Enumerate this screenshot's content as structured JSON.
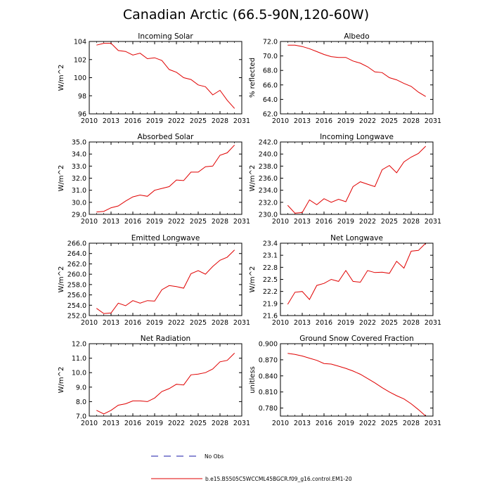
{
  "figure_title": "Canadian Arctic (66.5-90N,120-60W)",
  "legend": {
    "entries": [
      {
        "label": "No Obs",
        "style": "dashed",
        "color": "#1a1aa8"
      },
      {
        "label": "b.e15.B5505C5WCCML45BGCR.f09_g16.control.EM1-20",
        "style": "solid",
        "color": "#e00000"
      }
    ]
  },
  "chart_data": [
    {
      "type": "line",
      "title": "Incoming Solar",
      "ylabel": "W/m^2",
      "xlim": [
        2010,
        2031
      ],
      "xticks": [
        2010,
        2013,
        2016,
        2019,
        2022,
        2025,
        2028,
        2031
      ],
      "ylim": [
        96,
        104
      ],
      "yticks": [
        96,
        98,
        100,
        102,
        104
      ],
      "ytick_labels": [
        "96",
        "98",
        "100",
        "102",
        "104"
      ],
      "series": [
        {
          "name": "b.e15.B5505C5WCCML45BGCR.f09_g16.control.EM1-20",
          "color": "#e00000",
          "x": [
            2011,
            2012,
            2013,
            2014,
            2015,
            2016,
            2017,
            2018,
            2019,
            2020,
            2021,
            2022,
            2023,
            2024,
            2025,
            2026,
            2027,
            2028,
            2029,
            2030
          ],
          "y": [
            103.6,
            103.8,
            103.8,
            103.0,
            102.9,
            102.5,
            102.7,
            102.1,
            102.2,
            101.9,
            100.9,
            100.6,
            100.0,
            99.8,
            99.2,
            99.0,
            98.1,
            98.6,
            97.5,
            96.6
          ]
        }
      ]
    },
    {
      "type": "line",
      "title": "Albedo",
      "ylabel": "% reflected",
      "xlim": [
        2010,
        2031
      ],
      "xticks": [
        2010,
        2013,
        2016,
        2019,
        2022,
        2025,
        2028,
        2031
      ],
      "ylim": [
        62,
        72
      ],
      "yticks": [
        62,
        64,
        66,
        68,
        70,
        72
      ],
      "ytick_labels": [
        "62.0",
        "64.0",
        "66.0",
        "68.0",
        "70.0",
        "72.0"
      ],
      "series": [
        {
          "name": "b.e15.B5505C5WCCML45BGCR.f09_g16.control.EM1-20",
          "color": "#e00000",
          "x": [
            2011,
            2012,
            2013,
            2014,
            2015,
            2016,
            2017,
            2018,
            2019,
            2020,
            2021,
            2022,
            2023,
            2024,
            2025,
            2026,
            2027,
            2028,
            2029,
            2030
          ],
          "y": [
            71.5,
            71.5,
            71.3,
            71.0,
            70.6,
            70.2,
            69.9,
            69.8,
            69.8,
            69.3,
            69.0,
            68.5,
            67.8,
            67.7,
            67.0,
            66.7,
            66.2,
            65.8,
            65.0,
            64.4
          ]
        }
      ]
    },
    {
      "type": "line",
      "title": "Absorbed Solar",
      "ylabel": "W/m^2",
      "xlim": [
        2010,
        2031
      ],
      "xticks": [
        2010,
        2013,
        2016,
        2019,
        2022,
        2025,
        2028,
        2031
      ],
      "ylim": [
        29,
        35
      ],
      "yticks": [
        29,
        30,
        31,
        32,
        33,
        34,
        35
      ],
      "ytick_labels": [
        "29.0",
        "30.0",
        "31.0",
        "32.0",
        "33.0",
        "34.0",
        "35.0"
      ],
      "series": [
        {
          "name": "b.e15.B5505C5WCCML45BGCR.f09_g16.control.EM1-20",
          "color": "#e00000",
          "x": [
            2011,
            2012,
            2013,
            2014,
            2015,
            2016,
            2017,
            2018,
            2019,
            2020,
            2021,
            2022,
            2023,
            2024,
            2025,
            2026,
            2027,
            2028,
            2029,
            2030
          ],
          "y": [
            29.2,
            29.25,
            29.55,
            29.7,
            30.1,
            30.45,
            30.6,
            30.5,
            31.0,
            31.15,
            31.3,
            31.85,
            31.8,
            32.5,
            32.5,
            32.95,
            33.0,
            33.9,
            34.1,
            34.75
          ]
        }
      ]
    },
    {
      "type": "line",
      "title": "Incoming Longwave",
      "ylabel": "W/m^2",
      "xlim": [
        2010,
        2031
      ],
      "xticks": [
        2010,
        2013,
        2016,
        2019,
        2022,
        2025,
        2028,
        2031
      ],
      "ylim": [
        230,
        242
      ],
      "yticks": [
        230,
        232,
        234,
        236,
        238,
        240,
        242
      ],
      "ytick_labels": [
        "230.0",
        "232.0",
        "234.0",
        "236.0",
        "238.0",
        "240.0",
        "242.0"
      ],
      "series": [
        {
          "name": "b.e15.B5505C5WCCML45BGCR.f09_g16.control.EM1-20",
          "color": "#e00000",
          "x": [
            2011,
            2012,
            2013,
            2014,
            2015,
            2016,
            2017,
            2018,
            2019,
            2020,
            2021,
            2022,
            2023,
            2024,
            2025,
            2026,
            2027,
            2028,
            2029,
            2030
          ],
          "y": [
            231.5,
            230.2,
            230.3,
            232.4,
            231.6,
            232.6,
            232.0,
            232.5,
            232.1,
            234.6,
            235.4,
            235.0,
            234.6,
            237.4,
            238.1,
            236.9,
            238.7,
            239.5,
            240.1,
            241.3
          ]
        }
      ]
    },
    {
      "type": "line",
      "title": "Emitted Longwave",
      "ylabel": "W/m^2",
      "xlim": [
        2010,
        2031
      ],
      "xticks": [
        2010,
        2013,
        2016,
        2019,
        2022,
        2025,
        2028,
        2031
      ],
      "ylim": [
        252,
        266
      ],
      "yticks": [
        252,
        254,
        256,
        258,
        260,
        262,
        264,
        266
      ],
      "ytick_labels": [
        "252.0",
        "254.0",
        "256.0",
        "258.0",
        "260.0",
        "262.0",
        "264.0",
        "266.0"
      ],
      "series": [
        {
          "name": "b.e15.B5505C5WCCML45BGCR.f09_g16.control.EM1-20",
          "color": "#e00000",
          "x": [
            2011,
            2012,
            2013,
            2014,
            2015,
            2016,
            2017,
            2018,
            2019,
            2020,
            2021,
            2022,
            2023,
            2024,
            2025,
            2026,
            2027,
            2028,
            2029,
            2030
          ],
          "y": [
            253.4,
            252.4,
            252.5,
            254.4,
            253.9,
            254.9,
            254.4,
            254.9,
            254.8,
            257.0,
            257.8,
            257.6,
            257.3,
            260.1,
            260.7,
            260.0,
            261.5,
            262.7,
            263.3,
            264.7
          ]
        }
      ]
    },
    {
      "type": "line",
      "title": "Net Longwave",
      "ylabel": "W/m^2",
      "xlim": [
        2010,
        2031
      ],
      "xticks": [
        2010,
        2013,
        2016,
        2019,
        2022,
        2025,
        2028,
        2031
      ],
      "ylim": [
        21.6,
        23.4
      ],
      "yticks": [
        21.6,
        21.9,
        22.2,
        22.5,
        22.8,
        23.1,
        23.4
      ],
      "ytick_labels": [
        "21.6",
        "21.9",
        "22.2",
        "22.5",
        "22.8",
        "23.1",
        "23.4"
      ],
      "series": [
        {
          "name": "b.e15.B5505C5WCCML45BGCR.f09_g16.control.EM1-20",
          "color": "#e00000",
          "x": [
            2011,
            2012,
            2013,
            2014,
            2015,
            2016,
            2017,
            2018,
            2019,
            2020,
            2021,
            2022,
            2023,
            2024,
            2025,
            2026,
            2027,
            2028,
            2029,
            2030
          ],
          "y": [
            21.88,
            22.18,
            22.2,
            22.0,
            22.35,
            22.4,
            22.5,
            22.45,
            22.72,
            22.45,
            22.43,
            22.72,
            22.67,
            22.68,
            22.65,
            22.95,
            22.78,
            23.2,
            23.22,
            23.4
          ]
        }
      ]
    },
    {
      "type": "line",
      "title": "Net Radiation",
      "ylabel": "W/m^2",
      "xlim": [
        2010,
        2031
      ],
      "xticks": [
        2010,
        2013,
        2016,
        2019,
        2022,
        2025,
        2028,
        2031
      ],
      "ylim": [
        7,
        12
      ],
      "yticks": [
        7,
        8,
        9,
        10,
        11,
        12
      ],
      "ytick_labels": [
        "7.0",
        "8.0",
        "9.0",
        "10.0",
        "11.0",
        "12.0"
      ],
      "series": [
        {
          "name": "b.e15.B5505C5WCCML45BGCR.f09_g16.control.EM1-20",
          "color": "#e00000",
          "x": [
            2011,
            2012,
            2013,
            2014,
            2015,
            2016,
            2017,
            2018,
            2019,
            2020,
            2021,
            2022,
            2023,
            2024,
            2025,
            2026,
            2027,
            2028,
            2029,
            2030
          ],
          "y": [
            7.4,
            7.15,
            7.4,
            7.75,
            7.85,
            8.05,
            8.05,
            8.0,
            8.25,
            8.7,
            8.9,
            9.2,
            9.15,
            9.85,
            9.9,
            10.0,
            10.25,
            10.75,
            10.85,
            11.35
          ]
        }
      ]
    },
    {
      "type": "line",
      "title": "Ground Snow Covered Fraction",
      "ylabel": "unitless",
      "xlim": [
        2010,
        2031
      ],
      "xticks": [
        2010,
        2013,
        2016,
        2019,
        2022,
        2025,
        2028,
        2031
      ],
      "ylim": [
        0.765,
        0.9
      ],
      "yticks": [
        0.78,
        0.81,
        0.84,
        0.87,
        0.9
      ],
      "ytick_labels": [
        "0.780",
        "0.810",
        "0.840",
        "0.870",
        "0.900"
      ],
      "series": [
        {
          "name": "b.e15.B5505C5WCCML45BGCR.f09_g16.control.EM1-20",
          "color": "#e00000",
          "x": [
            2011,
            2012,
            2013,
            2014,
            2015,
            2016,
            2017,
            2018,
            2019,
            2020,
            2021,
            2022,
            2023,
            2024,
            2025,
            2026,
            2027,
            2028,
            2029,
            2030
          ],
          "y": [
            0.882,
            0.88,
            0.877,
            0.873,
            0.869,
            0.863,
            0.862,
            0.858,
            0.854,
            0.849,
            0.843,
            0.835,
            0.827,
            0.818,
            0.81,
            0.803,
            0.797,
            0.788,
            0.777,
            0.765
          ]
        }
      ]
    }
  ]
}
